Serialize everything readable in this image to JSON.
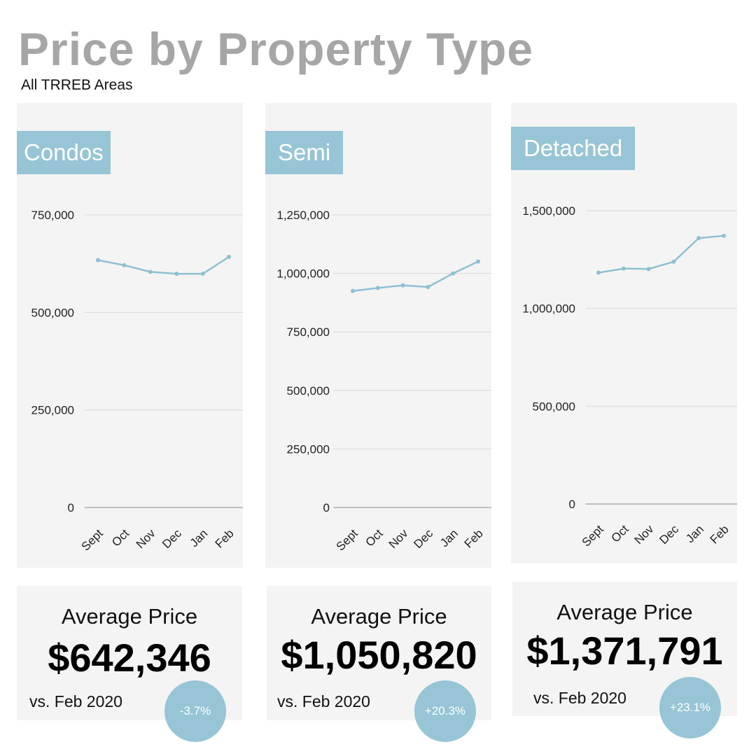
{
  "header": {
    "title": "Price by Property Type",
    "subtitle": "All TRREB Areas"
  },
  "chart_data": [
    {
      "type": "line",
      "title": "Condos",
      "categories": [
        "Sept",
        "Oct",
        "Nov",
        "Dec",
        "Jan",
        "Feb"
      ],
      "series": [
        {
          "values": [
            634000,
            621000,
            604000,
            599000,
            599000,
            642346
          ]
        }
      ],
      "yticks": [
        0,
        250000,
        500000,
        750000
      ],
      "ytick_labels": [
        "0",
        "250,000",
        "500,000",
        "750,000"
      ],
      "ylim": [
        0,
        750000
      ],
      "grid": true,
      "color": "#8fc0d3"
    },
    {
      "type": "line",
      "title": "Semi",
      "categories": [
        "Sept",
        "Oct",
        "Nov",
        "Dec",
        "Jan",
        "Feb"
      ],
      "series": [
        {
          "values": [
            925000,
            938000,
            949000,
            942000,
            1000000,
            1050820
          ]
        }
      ],
      "yticks": [
        0,
        250000,
        500000,
        750000,
        1000000,
        1250000
      ],
      "ytick_labels": [
        "0",
        "250,000",
        "500,000",
        "750,000",
        "1,000,000",
        "1,250,000"
      ],
      "ylim": [
        0,
        1250000
      ],
      "grid": true,
      "color": "#8fc0d3"
    },
    {
      "type": "line",
      "title": "Detached",
      "categories": [
        "Sept",
        "Oct",
        "Nov",
        "Dec",
        "Jan",
        "Feb"
      ],
      "series": [
        {
          "values": [
            1183000,
            1204000,
            1202000,
            1239000,
            1360000,
            1371791
          ]
        }
      ],
      "yticks": [
        0,
        500000,
        1000000,
        1500000
      ],
      "ytick_labels": [
        "0",
        "500,000",
        "1,000,000",
        "1,500,000"
      ],
      "ylim": [
        0,
        1500000
      ],
      "grid": true,
      "color": "#8fc0d3"
    }
  ],
  "cards": [
    {
      "label": "Average Price",
      "value": "$642,346",
      "comparison": "vs. Feb 2020",
      "change": "-3.7%"
    },
    {
      "label": "Average Price",
      "value": "$1,050,820",
      "comparison": "vs. Feb 2020",
      "change": "+20.3%"
    },
    {
      "label": "Average Price",
      "value": "$1,371,791",
      "comparison": "vs. Feb 2020",
      "change": "+23.1%"
    }
  ],
  "colors": {
    "accent": "#97c5d6",
    "line": "#8fc0d3",
    "panel": "#f4f4f4",
    "title": "#a6a6a6"
  }
}
